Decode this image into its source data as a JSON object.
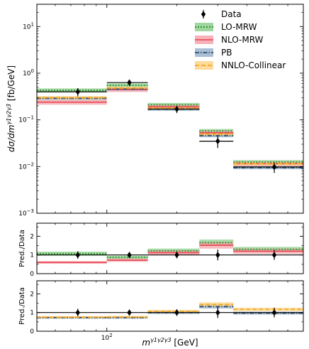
{
  "chart_data": {
    "type": "step-histogram",
    "xlabel_main": "m",
    "xlabel_sup": "γ1γ2γ3",
    "xlabel_unit": "[GeV]",
    "xscale": "log",
    "xlim": [
      50,
      700
    ],
    "xticks": [
      {
        "value": 100,
        "base": "10",
        "exp": "2"
      }
    ],
    "bins": [
      [
        50,
        100
      ],
      [
        100,
        150
      ],
      [
        150,
        250
      ],
      [
        250,
        350
      ],
      [
        350,
        700
      ]
    ],
    "main": {
      "ylabel": "dσ/dm",
      "ylabel_sup": "γ1γ2γ3",
      "ylabel_unit": "[fb/GeV]",
      "yscale": "log",
      "ylim": [
        0.001,
        30
      ],
      "yticks": [
        {
          "value": 0.001,
          "base": "10",
          "exp": "−3"
        },
        {
          "value": 0.01,
          "base": "10",
          "exp": "−2"
        },
        {
          "value": 0.1,
          "base": "10",
          "exp": "−1"
        },
        {
          "value": 1,
          "base": "10",
          "exp": "0"
        },
        {
          "value": 10,
          "base": "10",
          "exp": "1"
        }
      ],
      "data": {
        "name": "Data",
        "x": [
          75,
          125,
          200,
          300,
          525
        ],
        "y": [
          0.4,
          0.63,
          0.17,
          0.035,
          0.0098
        ],
        "err_lo": [
          0.08,
          0.1,
          0.03,
          0.01,
          0.0025
        ],
        "err_hi": [
          0.08,
          0.1,
          0.03,
          0.01,
          0.0025
        ]
      },
      "series": [
        {
          "name": "LO-MRW",
          "color": "#3a9a3a",
          "band": "#8fd08f",
          "style": "dotted",
          "values": [
            0.43,
            0.55,
            0.21,
            0.058,
            0.0125
          ],
          "rel_unc": 0.1
        },
        {
          "name": "NLO-MRW",
          "color": "#e8434f",
          "band": "#f4a5ab",
          "style": "solid",
          "values": [
            0.24,
            0.45,
            0.19,
            0.053,
            0.0115
          ],
          "rel_unc": 0.12
        },
        {
          "name": "PB",
          "color": "#2e4d6b",
          "band": "#9ab4cc",
          "style": "dashdot",
          "values": [
            0.29,
            0.46,
            0.17,
            0.046,
            0.0095
          ],
          "rel_unc": 0.08
        },
        {
          "name": "NNLO-Collinear",
          "color": "#f5a623",
          "band": "#fbd58a",
          "style": "dashed",
          "values": [
            0.3,
            0.48,
            0.18,
            0.05,
            0.0115
          ],
          "rel_unc": 0.08
        }
      ]
    },
    "ratio1": {
      "ylabel": "Pred./Data",
      "ylim": [
        0,
        2.7
      ],
      "yticks": [
        {
          "value": 0,
          "label": "0"
        },
        {
          "value": 1,
          "label": "1"
        },
        {
          "value": 2,
          "label": "2"
        }
      ],
      "series_indices": [
        0,
        1
      ],
      "data_rel_err": [
        0.2,
        0.16,
        0.18,
        0.29,
        0.26
      ],
      "ratios": [
        [
          1.07,
          0.87,
          1.22,
          1.66,
          1.3
        ],
        [
          0.6,
          0.72,
          1.12,
          1.52,
          1.2
        ]
      ]
    },
    "ratio2": {
      "ylabel": "Pred./Data",
      "ylim": [
        0,
        2.7
      ],
      "yticks": [
        {
          "value": 0,
          "label": "0"
        },
        {
          "value": 1,
          "label": "1"
        },
        {
          "value": 2,
          "label": "2"
        }
      ],
      "series_indices": [
        2,
        3
      ],
      "data_rel_err": [
        0.2,
        0.16,
        0.18,
        0.29,
        0.26
      ],
      "ratios": [
        [
          0.73,
          0.73,
          1.0,
          1.32,
          0.97
        ],
        [
          0.75,
          0.76,
          1.06,
          1.43,
          1.17
        ]
      ]
    }
  }
}
